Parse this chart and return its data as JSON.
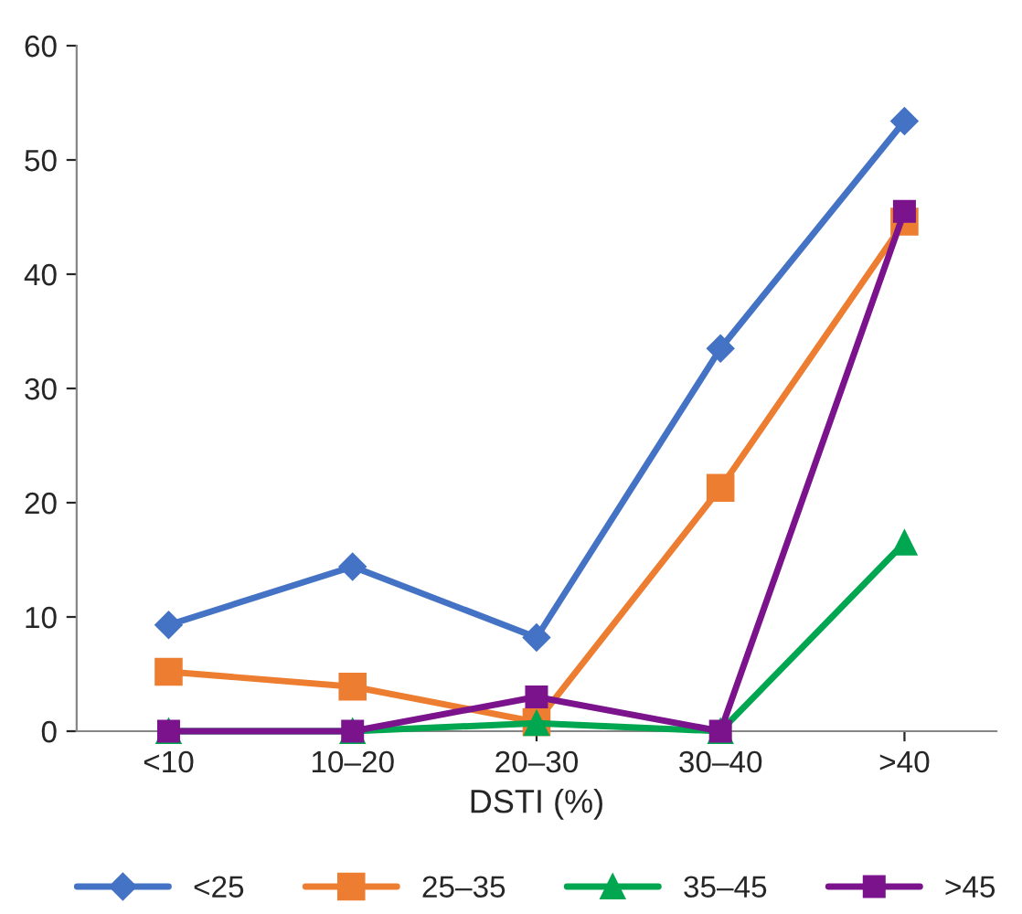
{
  "chart_data": {
    "type": "line",
    "xlabel": "DSTI (%)",
    "categories": [
      "<10",
      "10–20",
      "20–30",
      "30–40",
      ">40"
    ],
    "series": [
      {
        "name": "<25",
        "color": "#4472c4",
        "marker": "diamond",
        "values": [
          9.3,
          14.4,
          8.2,
          33.5,
          53.4
        ]
      },
      {
        "name": "25–35",
        "color": "#ed7d31",
        "marker": "square",
        "values": [
          5.2,
          3.9,
          0.8,
          21.3,
          44.6
        ]
      },
      {
        "name": "35–45",
        "color": "#00a650",
        "marker": "triangle",
        "values": [
          0,
          0,
          0.7,
          0,
          16.5
        ]
      },
      {
        "name": ">45",
        "color": "#7b138c",
        "marker": "square",
        "values": [
          0,
          0,
          3.0,
          0,
          45.5
        ]
      }
    ],
    "ylim": [
      0,
      60
    ],
    "yticks": [
      0,
      10,
      20,
      30,
      40,
      50,
      60
    ],
    "grid": false,
    "legend": "bottom",
    "line_style": "solid"
  }
}
